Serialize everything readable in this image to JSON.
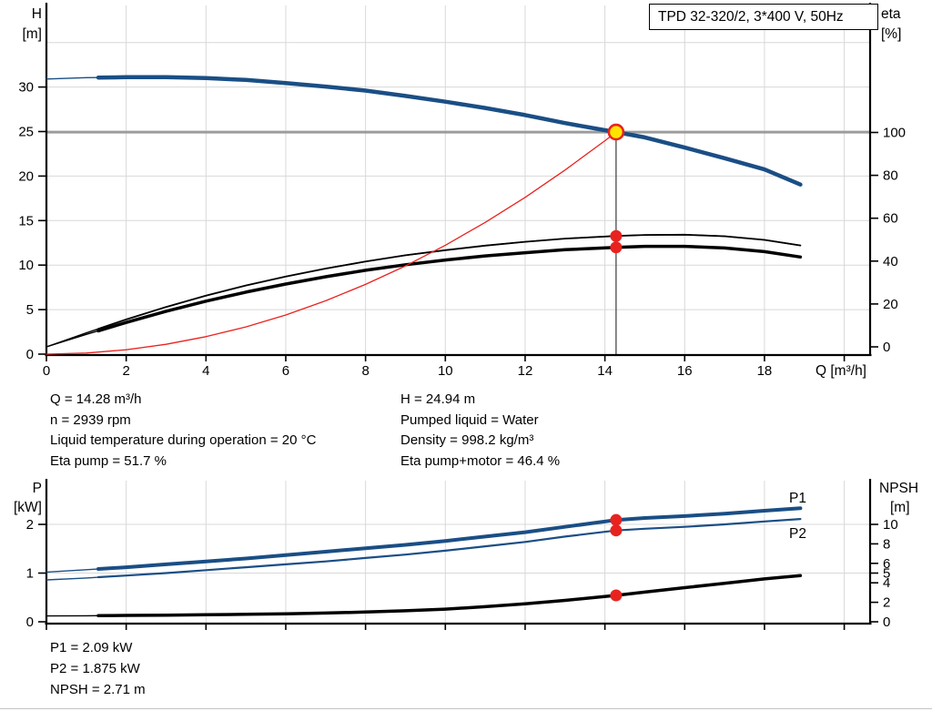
{
  "title_box": {
    "label": "TPD 32-320/2, 3*400 V, 50Hz"
  },
  "info_top_left": {
    "lines": [
      "Q = 14.28 m³/h",
      "n = 2939 rpm",
      "Liquid temperature during operation = 20 °C",
      "Eta pump = 51.7 %"
    ]
  },
  "info_top_right": {
    "lines": [
      "H = 24.94 m",
      "Pumped liquid = Water",
      "Density = 998.2 kg/m³",
      "Eta pump+motor = 46.4 %"
    ]
  },
  "info_bottom": {
    "lines": [
      "P1 = 2.09 kW",
      "P2 = 1.875 kW",
      "NPSH = 2.71 m"
    ]
  },
  "colors": {
    "blue": "#1a4e85",
    "black": "#000000",
    "red": "#e8231f",
    "duty_yellow": "#ffe400",
    "duty_gray": "#9c9c9c",
    "vline_dark": "#3a3a3a",
    "grid": "#d8d8d8",
    "axis": "#000000"
  },
  "chart_data": [
    {
      "id": "top",
      "type": "line",
      "x_axis": {
        "label": "Q [m³/h]",
        "min": 0,
        "max": 20.65,
        "ticks": [
          0,
          2,
          4,
          6,
          8,
          10,
          12,
          14,
          16,
          18,
          20
        ],
        "tick_labels": [
          "0",
          "2",
          "4",
          "6",
          "8",
          "10",
          "12",
          "14",
          "16",
          "18",
          ""
        ],
        "gridlines": [
          2,
          4,
          6,
          8,
          10,
          12,
          14,
          16,
          18,
          20
        ]
      },
      "y_left": {
        "label_lines": [
          "H",
          "[m]"
        ],
        "min": 0,
        "max": 39,
        "ticks": [
          0,
          5,
          10,
          15,
          20,
          25,
          30
        ],
        "gridlines": [
          5,
          10,
          15,
          20,
          25,
          30,
          35
        ]
      },
      "y_right": {
        "label_lines": [
          "eta",
          "[%]"
        ],
        "min": 0,
        "max": 160,
        "ticks": [
          0,
          20,
          40,
          60,
          80,
          100
        ]
      },
      "series": [
        {
          "name": "eta-pump",
          "axis": "right",
          "color_key": "black",
          "width": 1.8,
          "thin_to": 1.3,
          "points": [
            [
              0,
              0
            ],
            [
              1,
              6.5
            ],
            [
              2,
              12.8
            ],
            [
              3,
              18.6
            ],
            [
              4,
              23.9
            ],
            [
              5,
              28.6
            ],
            [
              6,
              32.8
            ],
            [
              7,
              36.5
            ],
            [
              8,
              39.8
            ],
            [
              9,
              42.7
            ],
            [
              10,
              45.1
            ],
            [
              11,
              47.2
            ],
            [
              12,
              49.0
            ],
            [
              13,
              50.5
            ],
            [
              14.28,
              51.7
            ],
            [
              15,
              52.2
            ],
            [
              16,
              52.3
            ],
            [
              17,
              51.6
            ],
            [
              18,
              49.9
            ],
            [
              18.9,
              47.3
            ]
          ]
        },
        {
          "name": "eta-pump-motor",
          "axis": "right",
          "color_key": "black",
          "width": 3.5,
          "thin_to": 1.3,
          "points": [
            [
              0,
              0
            ],
            [
              1,
              5.8
            ],
            [
              2,
              11.4
            ],
            [
              3,
              16.6
            ],
            [
              4,
              21.3
            ],
            [
              5,
              25.5
            ],
            [
              6,
              29.3
            ],
            [
              7,
              32.7
            ],
            [
              8,
              35.7
            ],
            [
              9,
              38.3
            ],
            [
              10,
              40.5
            ],
            [
              11,
              42.4
            ],
            [
              12,
              43.9
            ],
            [
              13,
              45.3
            ],
            [
              14.28,
              46.4
            ],
            [
              15,
              46.9
            ],
            [
              16,
              46.9
            ],
            [
              17,
              46.1
            ],
            [
              18,
              44.4
            ],
            [
              18.9,
              41.9
            ]
          ]
        },
        {
          "name": "system-curve",
          "axis": "left",
          "color_key": "red",
          "width": 1.3,
          "points": [
            [
              0,
              0
            ],
            [
              1,
              0.12
            ],
            [
              2,
              0.49
            ],
            [
              3,
              1.1
            ],
            [
              4,
              1.96
            ],
            [
              5,
              3.06
            ],
            [
              6,
              4.4
            ],
            [
              7,
              5.99
            ],
            [
              8,
              7.83
            ],
            [
              9,
              9.91
            ],
            [
              10,
              12.23
            ],
            [
              11,
              14.8
            ],
            [
              12,
              17.61
            ],
            [
              13,
              20.67
            ],
            [
              14,
              23.97
            ],
            [
              14.28,
              24.94
            ]
          ]
        },
        {
          "name": "qh-curve",
          "axis": "left",
          "color_key": "blue",
          "width": 4.5,
          "thin_to": 1.3,
          "points": [
            [
              0,
              30.9
            ],
            [
              1,
              31.05
            ],
            [
              2,
              31.1
            ],
            [
              3,
              31.1
            ],
            [
              4,
              31.0
            ],
            [
              5,
              30.8
            ],
            [
              6,
              30.45
            ],
            [
              7,
              30.05
            ],
            [
              8,
              29.6
            ],
            [
              9,
              29.0
            ],
            [
              10,
              28.35
            ],
            [
              11,
              27.65
            ],
            [
              12,
              26.85
            ],
            [
              13,
              25.95
            ],
            [
              14,
              25.15
            ],
            [
              14.28,
              24.94
            ],
            [
              15,
              24.35
            ],
            [
              16,
              23.2
            ],
            [
              17,
              22.0
            ],
            [
              18,
              20.75
            ],
            [
              18.9,
              19.05
            ]
          ]
        }
      ],
      "markers": [
        {
          "type": "hline",
          "axis": "left",
          "value": 24.94,
          "color_key": "duty_gray",
          "width": 3
        },
        {
          "type": "vline",
          "x": 14.28,
          "axis": "left",
          "from": 0,
          "to": 24.94,
          "color_key": "vline_dark",
          "width": 1.2
        },
        {
          "type": "dot",
          "x": 14.28,
          "value": 51.7,
          "axis": "right",
          "r": 6.5,
          "color_key": "red"
        },
        {
          "type": "dot",
          "x": 14.28,
          "value": 46.4,
          "axis": "right",
          "r": 6.5,
          "color_key": "red"
        },
        {
          "type": "duty_dot",
          "x": 14.28,
          "value": 24.94,
          "axis": "left",
          "r": 8,
          "fill_key": "duty_yellow",
          "stroke_key": "red"
        }
      ],
      "duty_point": {
        "q_m3h": 14.28,
        "h_m": 24.94,
        "eta_pump_pct": 51.7,
        "eta_pump_motor_pct": 46.4
      }
    },
    {
      "id": "bottom",
      "type": "line",
      "x_axis": {
        "label": "",
        "min": 0,
        "max": 20.65,
        "ticks": [
          0,
          2,
          4,
          6,
          8,
          10,
          12,
          14,
          16,
          18,
          20
        ],
        "tick_labels": [
          "",
          "",
          "",
          "",
          "",
          "",
          "",
          "",
          "",
          "",
          ""
        ],
        "gridlines": [
          2,
          4,
          6,
          8,
          10,
          12,
          14,
          16,
          18,
          20
        ]
      },
      "y_left": {
        "label_lines": [
          "P",
          "[kW]"
        ],
        "min": 0,
        "max": 2.9,
        "ticks": [
          0,
          1,
          2
        ],
        "gridlines": [
          1,
          2
        ]
      },
      "y_right": {
        "label_lines": [
          "NPSH",
          "[m]"
        ],
        "min": 0,
        "max": 14.3,
        "ticks": [
          0,
          2,
          4,
          5,
          6,
          8,
          10
        ]
      },
      "series": [
        {
          "name": "P2",
          "axis": "left",
          "color_key": "blue",
          "width": 2.2,
          "thin_to": 1.3,
          "points": [
            [
              0,
              0.86
            ],
            [
              1,
              0.9
            ],
            [
              2,
              0.95
            ],
            [
              3,
              1.0
            ],
            [
              4,
              1.06
            ],
            [
              5,
              1.12
            ],
            [
              6,
              1.18
            ],
            [
              7,
              1.24
            ],
            [
              8,
              1.31
            ],
            [
              9,
              1.38
            ],
            [
              10,
              1.46
            ],
            [
              11,
              1.55
            ],
            [
              12,
              1.64
            ],
            [
              13,
              1.75
            ],
            [
              14.28,
              1.875
            ],
            [
              15,
              1.91
            ],
            [
              16,
              1.95
            ],
            [
              17,
              2.0
            ],
            [
              18,
              2.06
            ],
            [
              18.9,
              2.11
            ]
          ]
        },
        {
          "name": "P1",
          "axis": "left",
          "color_key": "blue",
          "width": 4,
          "thin_to": 1.3,
          "points": [
            [
              0,
              1.02
            ],
            [
              1,
              1.07
            ],
            [
              2,
              1.12
            ],
            [
              3,
              1.18
            ],
            [
              4,
              1.24
            ],
            [
              5,
              1.3
            ],
            [
              6,
              1.37
            ],
            [
              7,
              1.44
            ],
            [
              8,
              1.51
            ],
            [
              9,
              1.58
            ],
            [
              10,
              1.66
            ],
            [
              11,
              1.75
            ],
            [
              12,
              1.84
            ],
            [
              13,
              1.95
            ],
            [
              14.28,
              2.09
            ],
            [
              15,
              2.13
            ],
            [
              16,
              2.17
            ],
            [
              17,
              2.22
            ],
            [
              18,
              2.28
            ],
            [
              18.9,
              2.33
            ]
          ]
        },
        {
          "name": "npsh-curve",
          "axis": "right",
          "color_key": "black",
          "width": 3.5,
          "thin_to": 1.3,
          "points": [
            [
              0,
              0.6
            ],
            [
              1,
              0.62
            ],
            [
              2,
              0.65
            ],
            [
              3,
              0.68
            ],
            [
              4,
              0.72
            ],
            [
              5,
              0.77
            ],
            [
              6,
              0.82
            ],
            [
              7,
              0.9
            ],
            [
              8,
              1.0
            ],
            [
              9,
              1.13
            ],
            [
              10,
              1.3
            ],
            [
              11,
              1.55
            ],
            [
              12,
              1.85
            ],
            [
              13,
              2.2
            ],
            [
              14.28,
              2.71
            ],
            [
              15,
              3.05
            ],
            [
              16,
              3.5
            ],
            [
              17,
              3.95
            ],
            [
              18,
              4.4
            ],
            [
              18.9,
              4.75
            ]
          ]
        }
      ],
      "markers": [
        {
          "type": "dot",
          "x": 14.28,
          "value": 2.09,
          "axis": "left",
          "r": 6.5,
          "color_key": "red"
        },
        {
          "type": "dot",
          "x": 14.28,
          "value": 1.875,
          "axis": "left",
          "r": 6.5,
          "color_key": "red"
        },
        {
          "type": "dot",
          "x": 14.28,
          "value": 2.71,
          "axis": "right",
          "r": 6.5,
          "color_key": "red"
        }
      ],
      "duty_point": {
        "q_m3h": 14.28,
        "p1_kw": 2.09,
        "p2_kw": 1.875,
        "npsh_m": 2.71
      }
    }
  ]
}
